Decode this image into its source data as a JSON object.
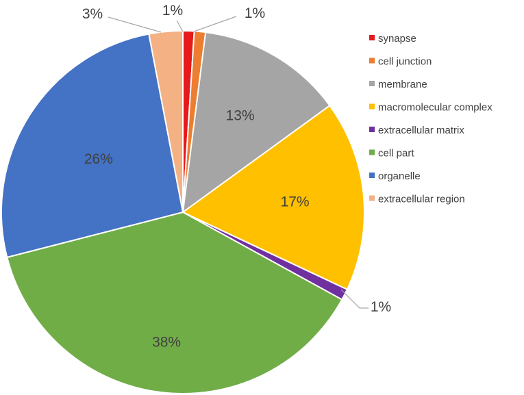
{
  "chart_data": {
    "type": "pie",
    "title": "",
    "slices": [
      {
        "name": "synapse",
        "value": 1,
        "label": "1%",
        "color": "#e6191c"
      },
      {
        "name": "cell junction",
        "value": 1,
        "label": "1%",
        "color": "#ed7d31"
      },
      {
        "name": "membrane",
        "value": 13,
        "label": "13%",
        "color": "#a5a5a5"
      },
      {
        "name": "macromolecular complex",
        "value": 17,
        "label": "17%",
        "color": "#ffc000"
      },
      {
        "name": "extracellular matrix",
        "value": 1,
        "label": "1%",
        "color": "#7030a0"
      },
      {
        "name": "cell part",
        "value": 38,
        "label": "38%",
        "color": "#70ad47"
      },
      {
        "name": "organelle",
        "value": 26,
        "label": "26%",
        "color": "#4472c4"
      },
      {
        "name": "extracellular region",
        "value": 3,
        "label": "3%",
        "color": "#f4b183"
      }
    ],
    "legend_placement": "right",
    "start_angle": "12 o'clock",
    "direction": "clockwise"
  }
}
